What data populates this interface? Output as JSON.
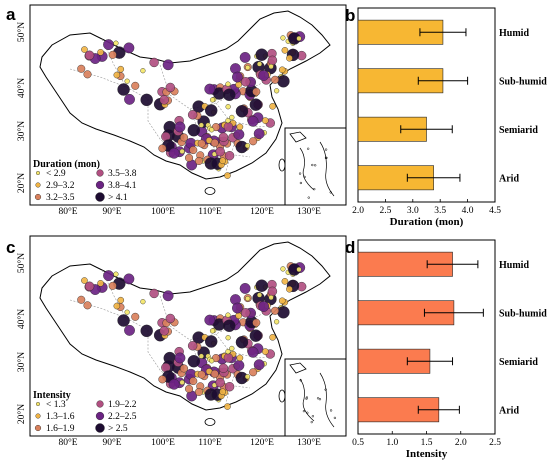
{
  "panels": {
    "a": {
      "label": "a",
      "legend_title": "Duration (mon)",
      "legend_items": [
        {
          "label": "< 2.9",
          "color": "#f4e66a"
        },
        {
          "label": "2.9–3.2",
          "color": "#f1b445"
        },
        {
          "label": "3.2–3.5",
          "color": "#d9805c"
        },
        {
          "label": "3.5–3.8",
          "color": "#b14f81"
        },
        {
          "label": "3.8–4.1",
          "color": "#6b2383"
        },
        {
          "label": "> 4.1",
          "color": "#1d0c31"
        }
      ]
    },
    "c": {
      "label": "c",
      "legend_title": "Intensity",
      "legend_items": [
        {
          "label": "< 1.3",
          "color": "#f4e66a"
        },
        {
          "label": "1.3–1.6",
          "color": "#f1b445"
        },
        {
          "label": "1.6–1.9",
          "color": "#d9805c"
        },
        {
          "label": "1.9–2.2",
          "color": "#b14f81"
        },
        {
          "label": "2.2–2.5",
          "color": "#6b2383"
        },
        {
          "label": "> 2.5",
          "color": "#1d0c31"
        }
      ]
    },
    "b": {
      "label": "b"
    },
    "d": {
      "label": "d"
    }
  },
  "map_axes": {
    "lat_labels": [
      "50°N",
      "40°N",
      "30°N",
      "20°N"
    ],
    "lon_labels": [
      "80°E",
      "90°E",
      "100°E",
      "110°E",
      "120°E",
      "130°E"
    ]
  },
  "chart_data": [
    {
      "type": "bar",
      "orientation": "horizontal",
      "categories": [
        "Humid",
        "Sub-humid",
        "Semiarid",
        "Arid"
      ],
      "values": [
        3.55,
        3.55,
        3.25,
        3.38
      ],
      "errors": [
        0.42,
        0.45,
        0.47,
        0.48
      ],
      "xlabel": "Duration (mon)",
      "xlim": [
        2.0,
        4.5
      ],
      "xticks": [
        "2.0",
        "2.5",
        "3.0",
        "3.5",
        "4.0",
        "4.5"
      ],
      "bar_color": "#f7b733"
    },
    {
      "type": "bar",
      "orientation": "horizontal",
      "categories": [
        "Humid",
        "Sub-humid",
        "Semiarid",
        "Arid"
      ],
      "values": [
        1.88,
        1.9,
        1.55,
        1.68
      ],
      "errors": [
        0.37,
        0.43,
        0.33,
        0.3
      ],
      "xlabel": "Intensity",
      "xlim": [
        0.5,
        2.5
      ],
      "xticks": [
        "0.5",
        "1.0",
        "1.5",
        "2.0",
        "2.5"
      ],
      "bar_color": "#fb7b4f"
    }
  ]
}
